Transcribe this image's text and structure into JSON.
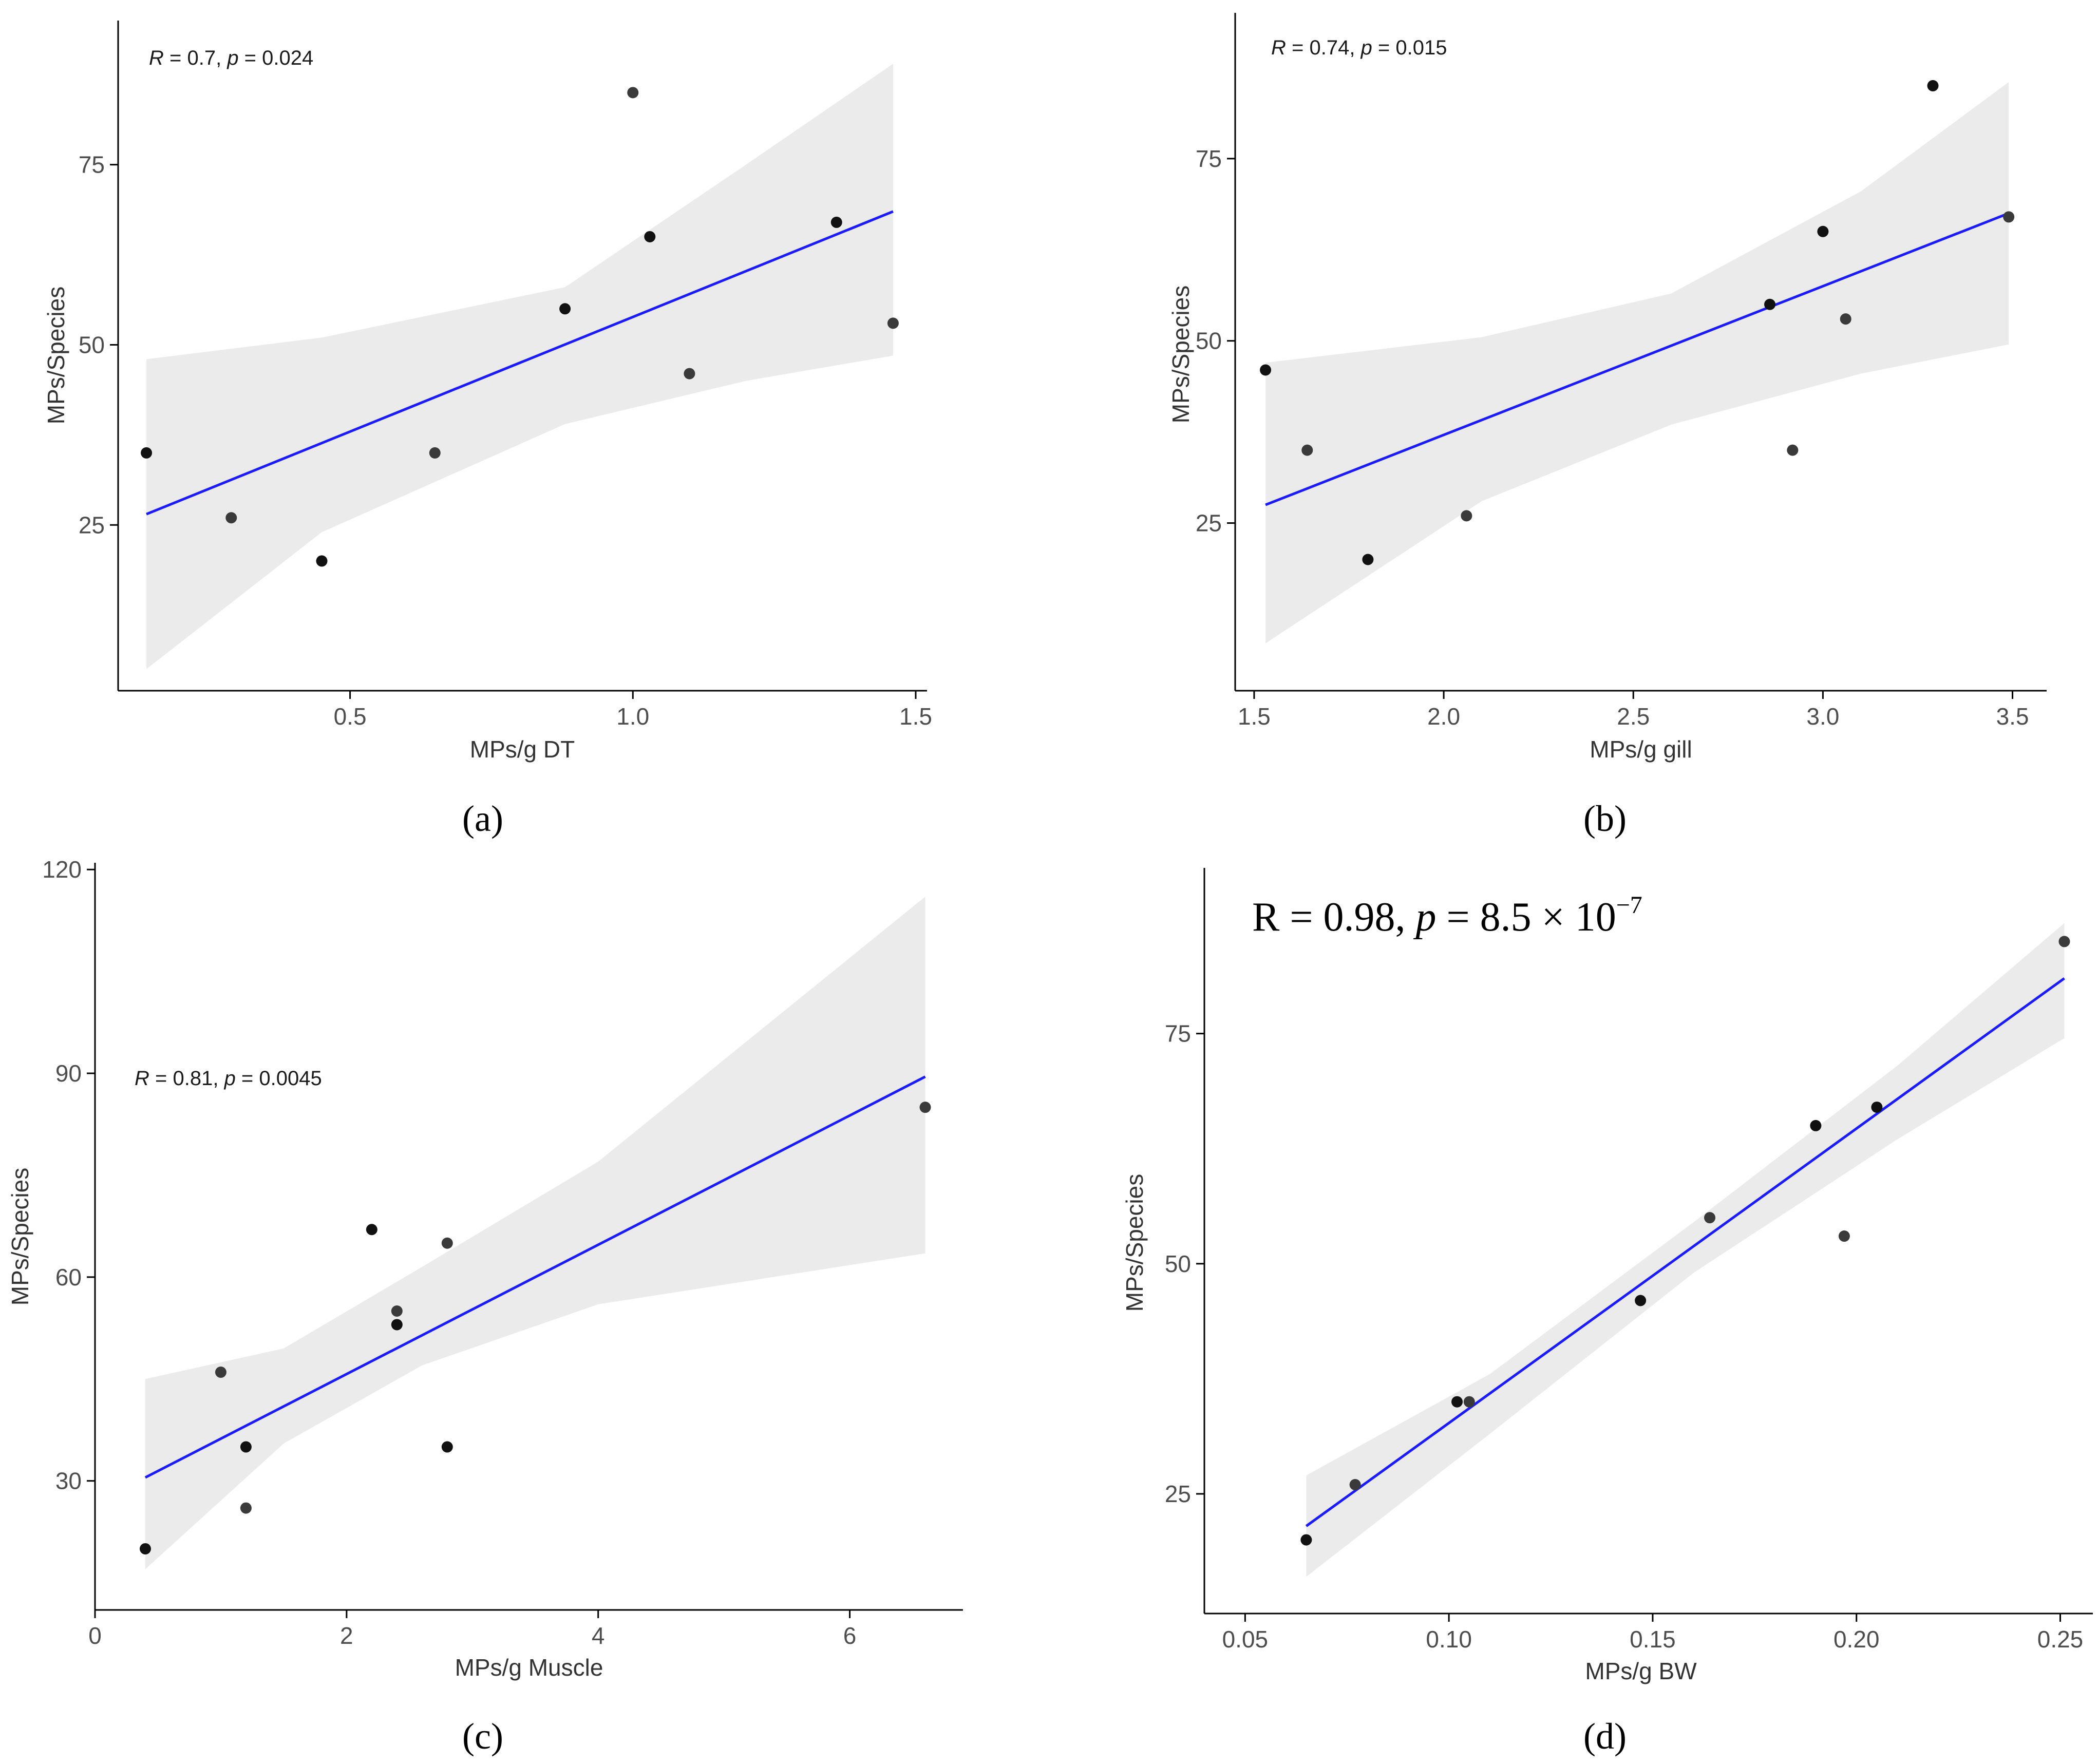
{
  "chart_data": [
    {
      "type": "scatter",
      "panel_label": "a",
      "caption": "(a)",
      "xlabel": "MPs/g DT",
      "ylabel": "MPs/Species",
      "annotation": {
        "r_label": "R",
        "r_value": " = 0.7, ",
        "p_label": "p",
        "p_value": " = 0.024"
      },
      "xlim": [
        0.09,
        1.52
      ],
      "ylim": [
        2,
        95
      ],
      "xticks": [
        0.5,
        1.0,
        1.5
      ],
      "xtick_labels": [
        "0.5",
        "1.0",
        "1.5"
      ],
      "yticks": [
        25,
        50,
        75
      ],
      "ytick_labels": [
        "25",
        "50",
        "75"
      ],
      "points": [
        {
          "x": 0.14,
          "y": 35
        },
        {
          "x": 0.29,
          "y": 26
        },
        {
          "x": 0.45,
          "y": 20
        },
        {
          "x": 0.65,
          "y": 35
        },
        {
          "x": 0.88,
          "y": 55
        },
        {
          "x": 1.0,
          "y": 85
        },
        {
          "x": 1.03,
          "y": 65
        },
        {
          "x": 1.1,
          "y": 46
        },
        {
          "x": 1.36,
          "y": 67
        },
        {
          "x": 1.46,
          "y": 53
        }
      ],
      "fit": {
        "x": [
          0.14,
          1.46
        ],
        "y": [
          26.5,
          68.5
        ]
      },
      "ci": {
        "x": [
          0.14,
          0.45,
          0.88,
          1.2,
          1.46
        ],
        "lower": [
          5,
          24,
          39,
          45,
          48.5
        ],
        "upper": [
          48,
          51,
          58,
          75,
          89
        ]
      }
    },
    {
      "type": "scatter",
      "panel_label": "b",
      "caption": "(b)",
      "xlabel": "MPs/g gill",
      "ylabel": "MPs/Species",
      "annotation": {
        "r_label": "R",
        "r_value": " = 0.74, ",
        "p_label": "p",
        "p_value": " = 0.015"
      },
      "xlim": [
        1.45,
        3.59
      ],
      "ylim": [
        2,
        95
      ],
      "xticks": [
        1.5,
        2.0,
        2.5,
        3.0,
        3.5
      ],
      "xtick_labels": [
        "1.5",
        "2.0",
        "2.5",
        "3.0",
        "3.5"
      ],
      "yticks": [
        25,
        50,
        75
      ],
      "ytick_labels": [
        "25",
        "50",
        "75"
      ],
      "points": [
        {
          "x": 1.53,
          "y": 46
        },
        {
          "x": 1.64,
          "y": 35
        },
        {
          "x": 1.8,
          "y": 20
        },
        {
          "x": 2.06,
          "y": 26
        },
        {
          "x": 2.86,
          "y": 55
        },
        {
          "x": 2.92,
          "y": 35
        },
        {
          "x": 3.0,
          "y": 65
        },
        {
          "x": 3.06,
          "y": 53
        },
        {
          "x": 3.29,
          "y": 85
        },
        {
          "x": 3.49,
          "y": 67
        }
      ],
      "fit": {
        "x": [
          1.53,
          3.49
        ],
        "y": [
          27.5,
          67.5
        ]
      },
      "ci": {
        "x": [
          1.53,
          2.1,
          2.6,
          3.1,
          3.49
        ],
        "lower": [
          8.5,
          28,
          38.5,
          45.5,
          49.5
        ],
        "upper": [
          47,
          50.5,
          56.5,
          70.5,
          85.5
        ]
      }
    },
    {
      "type": "scatter",
      "panel_label": "c",
      "caption": "(c)",
      "xlabel": "MPs/g Muscle",
      "ylabel": "MPs/Species",
      "annotation": {
        "r_label": "R",
        "r_value": " = 0.81, ",
        "p_label": "p",
        "p_value": " = 0.0045"
      },
      "xlim": [
        0,
        6.9
      ],
      "ylim": [
        11,
        121
      ],
      "xticks": [
        0,
        2,
        4,
        6
      ],
      "xtick_labels": [
        "0",
        "2",
        "4",
        "6"
      ],
      "yticks": [
        30,
        60,
        90,
        120
      ],
      "ytick_labels": [
        "30",
        "60",
        "90",
        "120"
      ],
      "points": [
        {
          "x": 0.4,
          "y": 20
        },
        {
          "x": 1.0,
          "y": 46
        },
        {
          "x": 1.2,
          "y": 35
        },
        {
          "x": 1.2,
          "y": 26
        },
        {
          "x": 2.2,
          "y": 67
        },
        {
          "x": 2.4,
          "y": 55
        },
        {
          "x": 2.4,
          "y": 53
        },
        {
          "x": 2.8,
          "y": 65
        },
        {
          "x": 2.8,
          "y": 35
        },
        {
          "x": 6.6,
          "y": 85
        }
      ],
      "fit": {
        "x": [
          0.4,
          6.6
        ],
        "y": [
          30.5,
          89.5
        ]
      },
      "ci": {
        "x": [
          0.4,
          1.5,
          2.6,
          4.0,
          6.6
        ],
        "lower": [
          17,
          35.5,
          47,
          56,
          63.5
        ],
        "upper": [
          45,
          49.5,
          61.5,
          77,
          116
        ]
      }
    },
    {
      "type": "scatter",
      "panel_label": "d",
      "caption": "(d)",
      "xlabel": "MPs/g BW",
      "ylabel": "MPs/Species",
      "annotation": {
        "text": "R = 0.98, ",
        "p_label": "p",
        "p_value": " = 8.5 × 10",
        "exponent": "−7"
      },
      "xlim": [
        0.04,
        0.258
      ],
      "ylim": [
        12,
        93
      ],
      "xticks": [
        0.05,
        0.1,
        0.15,
        0.2,
        0.25
      ],
      "xtick_labels": [
        "0.05",
        "0.10",
        "0.15",
        "0.20",
        "0.25"
      ],
      "yticks": [
        25,
        50,
        75
      ],
      "ytick_labels": [
        "25",
        "50",
        "75"
      ],
      "points": [
        {
          "x": 0.065,
          "y": 20
        },
        {
          "x": 0.077,
          "y": 26
        },
        {
          "x": 0.102,
          "y": 35
        },
        {
          "x": 0.105,
          "y": 35
        },
        {
          "x": 0.147,
          "y": 46
        },
        {
          "x": 0.164,
          "y": 55
        },
        {
          "x": 0.19,
          "y": 65
        },
        {
          "x": 0.197,
          "y": 53
        },
        {
          "x": 0.205,
          "y": 67
        },
        {
          "x": 0.251,
          "y": 85
        }
      ],
      "fit": {
        "x": [
          0.065,
          0.251
        ],
        "y": [
          21.5,
          81
        ]
      },
      "ci": {
        "x": [
          0.065,
          0.11,
          0.16,
          0.21,
          0.251
        ],
        "lower": [
          16,
          31.5,
          49,
          63.5,
          74.5
        ],
        "upper": [
          27,
          38,
          54.5,
          71.5,
          87
        ]
      }
    }
  ]
}
